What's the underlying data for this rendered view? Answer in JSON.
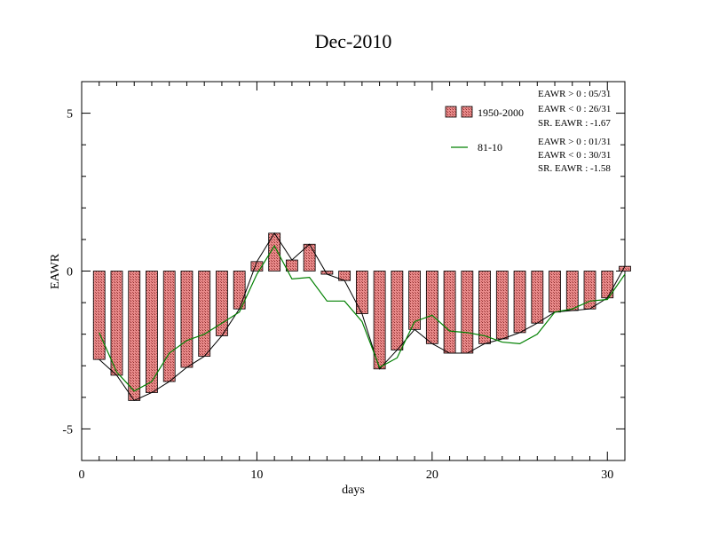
{
  "chart_data": {
    "type": "bar",
    "title": "Dec-2010",
    "xlabel": "days",
    "ylabel": "EAWR",
    "xlim": [
      0,
      31
    ],
    "ylim": [
      -6,
      6
    ],
    "xticks": [
      0,
      10,
      20,
      30
    ],
    "yticks": [
      5,
      0,
      -5
    ],
    "ytick_labels": [
      "5",
      "0",
      "-5"
    ],
    "grid": false,
    "legend_position": "top-right",
    "bar_fill_color": "#e88a8a",
    "x": [
      1,
      2,
      3,
      4,
      5,
      6,
      7,
      8,
      9,
      10,
      11,
      12,
      13,
      14,
      15,
      16,
      17,
      18,
      19,
      20,
      21,
      22,
      23,
      24,
      25,
      26,
      27,
      28,
      29,
      30,
      31
    ],
    "series": [
      {
        "name": "1950-2000",
        "kind": "bar",
        "color": "#000000",
        "values": [
          -2.8,
          -3.3,
          -4.1,
          -3.85,
          -3.5,
          -3.05,
          -2.7,
          -2.05,
          -1.2,
          0.3,
          1.2,
          0.35,
          0.85,
          -0.1,
          -0.3,
          -1.35,
          -3.1,
          -2.5,
          -1.85,
          -2.3,
          -2.6,
          -2.6,
          -2.3,
          -2.15,
          -1.95,
          -1.65,
          -1.3,
          -1.25,
          -1.2,
          -0.85,
          0.15
        ]
      },
      {
        "name": "81-10",
        "kind": "line",
        "color": "#008000",
        "values": [
          -1.95,
          -3.2,
          -3.8,
          -3.5,
          -2.6,
          -2.2,
          -2.0,
          -1.65,
          -1.3,
          -0.1,
          0.8,
          -0.25,
          -0.2,
          -0.95,
          -0.95,
          -1.6,
          -3.05,
          -2.75,
          -1.6,
          -1.4,
          -1.9,
          -1.95,
          -2.05,
          -2.25,
          -2.3,
          -2.0,
          -1.3,
          -1.2,
          -0.95,
          -0.9,
          -0.1
        ]
      }
    ],
    "annotations": {
      "group1": [
        "EAWR > 0 : 05/31",
        "EAWR < 0 : 26/31",
        "SR. EAWR : -1.67"
      ],
      "group2": [
        "EAWR > 0 : 01/31",
        "EAWR < 0 : 30/31",
        "SR. EAWR : -1.58"
      ]
    }
  }
}
